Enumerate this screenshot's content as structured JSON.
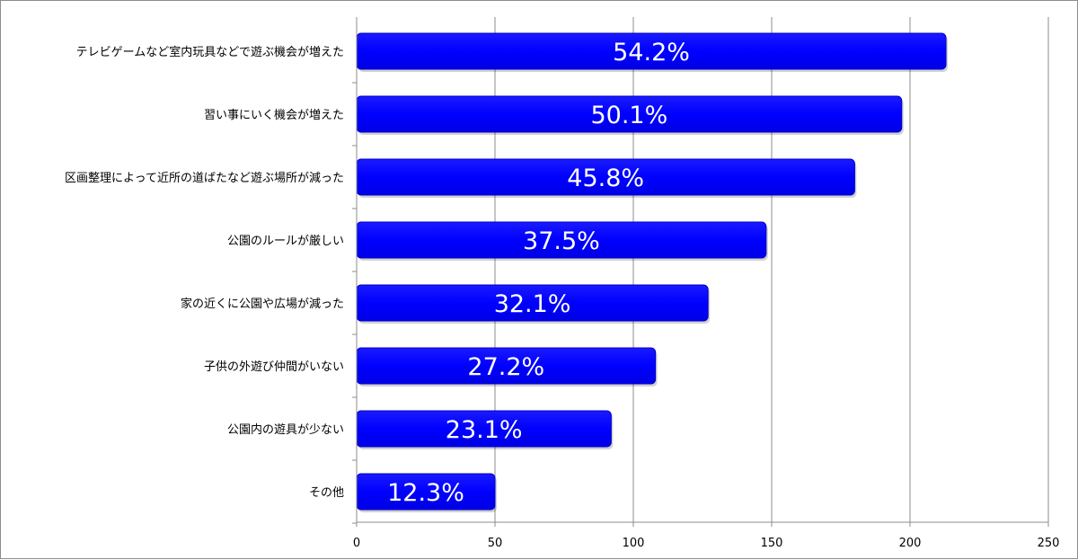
{
  "chart_data": {
    "type": "bar",
    "orientation": "horizontal",
    "categories": [
      "テレビゲームなど室内玩具などで遊ぶ機会が増えた",
      "習い事にいく機会が増えた",
      "区画整理によって近所の道ばたなど遊ぶ場所が減った",
      "公園のルールが厳しい",
      "家の近くに公園や広場が減った",
      "子供の外遊び仲間がいない",
      "公園内の遊具が少ない",
      "その他"
    ],
    "values": [
      213,
      197,
      180,
      148,
      127,
      108,
      92,
      50
    ],
    "data_labels": [
      "54.2%",
      "50.1%",
      "45.8%",
      "37.5%",
      "32.1%",
      "27.2%",
      "23.1%",
      "12.3%"
    ],
    "xlim": [
      0,
      250
    ],
    "x_ticks": [
      0,
      50,
      100,
      150,
      200,
      250
    ],
    "grid": "vertical",
    "bar_color": "#0000ff",
    "title": "",
    "xlabel": "",
    "ylabel": ""
  }
}
